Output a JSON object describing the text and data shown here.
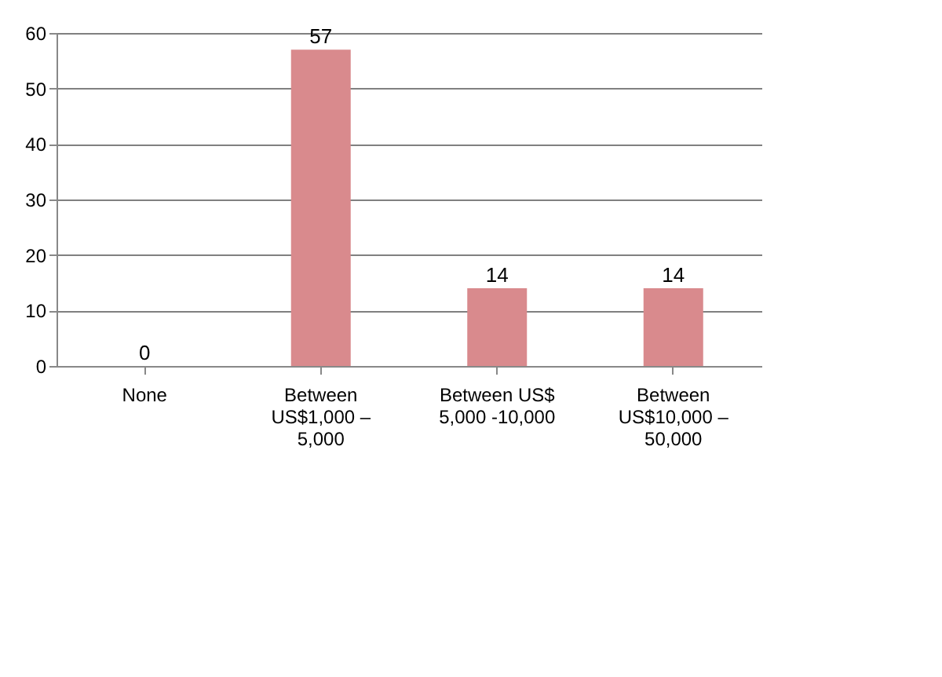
{
  "chart_data": {
    "type": "bar",
    "categories": [
      "None",
      "Between US$1,000 – 5,000",
      "Between US$ 5,000 -10,000",
      "Between US$10,000 – 50,000"
    ],
    "values": [
      0,
      57,
      14,
      14
    ],
    "color": "#d98a8d",
    "ylim": [
      0,
      60
    ],
    "yticks": [
      0,
      10,
      20,
      30,
      40,
      50,
      60
    ],
    "grid": "y",
    "data_labels": true
  }
}
